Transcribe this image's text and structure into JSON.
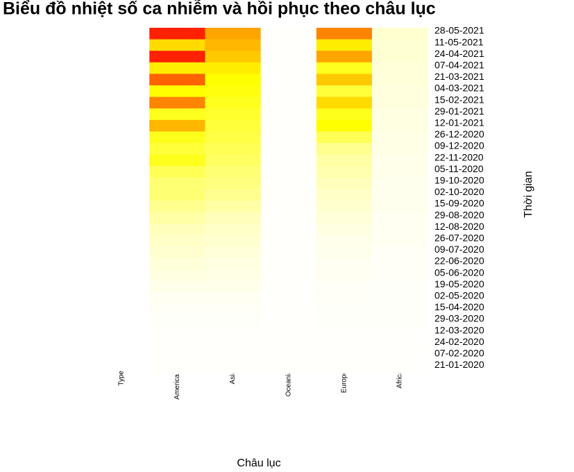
{
  "chart_data": {
    "type": "heatmap",
    "title": "Biểu đồ nhiệt số ca nhiễm và hồi phục theo châu lục",
    "x_label": "Châu lục",
    "y_label": "Thời gian",
    "categories": [
      "28-05-2021",
      "11-05-2021",
      "24-04-2021",
      "07-04-2021",
      "21-03-2021",
      "04-03-2021",
      "15-02-2021",
      "29-01-2021",
      "12-01-2021",
      "26-12-2020",
      "09-12-2020",
      "22-11-2020",
      "05-11-2020",
      "19-10-2020",
      "02-10-2020",
      "15-09-2020",
      "29-08-2020",
      "12-08-2020",
      "26-07-2020",
      "09-07-2020",
      "22-06-2020",
      "05-06-2020",
      "19-05-2020",
      "02-05-2020",
      "15-04-2020",
      "29-03-2020",
      "12-03-2020",
      "24-02-2020",
      "07-02-2020",
      "21-01-2020"
    ],
    "series": [
      {
        "name": "Type",
        "values": [
          null,
          null,
          null,
          null,
          null,
          null,
          null,
          null,
          null,
          null,
          null,
          null,
          null,
          null,
          null,
          null,
          null,
          null,
          null,
          null,
          null,
          null,
          null,
          null,
          null,
          null,
          null,
          null,
          null,
          null
        ]
      },
      {
        "name": "Americas",
        "values": [
          95,
          60,
          95,
          55,
          85,
          50,
          80,
          45,
          70,
          45,
          40,
          45,
          35,
          30,
          30,
          25,
          20,
          15,
          12,
          10,
          8,
          6,
          4,
          2,
          1,
          0.5,
          0,
          0,
          0,
          0
        ]
      },
      {
        "name": "Asia",
        "values": [
          75,
          70,
          65,
          55,
          50,
          48,
          45,
          42,
          40,
          38,
          35,
          33,
          30,
          28,
          25,
          20,
          15,
          12,
          10,
          8,
          6,
          5,
          4,
          2,
          1,
          0.5,
          0,
          0,
          0,
          0
        ]
      },
      {
        "name": "Oceania",
        "values": [
          0,
          0,
          0,
          0,
          0,
          0,
          0,
          0,
          0,
          0,
          0,
          0,
          0,
          0,
          0,
          0,
          0,
          0,
          0,
          0,
          0,
          0,
          0,
          0,
          0,
          0,
          0,
          0,
          0,
          0
        ]
      },
      {
        "name": "Europe",
        "values": [
          80,
          55,
          75,
          45,
          65,
          40,
          60,
          45,
          50,
          35,
          25,
          20,
          18,
          15,
          12,
          10,
          8,
          6,
          4,
          3,
          2,
          2,
          1,
          1,
          0.5,
          0.3,
          0,
          0,
          0,
          0
        ]
      },
      {
        "name": "Africa",
        "values": [
          10,
          9,
          9,
          8,
          8,
          7,
          7,
          6,
          6,
          5,
          5,
          4,
          4,
          3,
          3,
          3,
          2,
          2,
          2,
          1,
          1,
          1,
          0.5,
          0.5,
          0.3,
          0.2,
          0,
          0,
          0,
          0
        ]
      }
    ],
    "vlim": [
      0,
      100
    ],
    "color_stops": [
      "#fffffb",
      "#ffff90",
      "#ffff00",
      "#ffa500",
      "#ff0000"
    ]
  }
}
